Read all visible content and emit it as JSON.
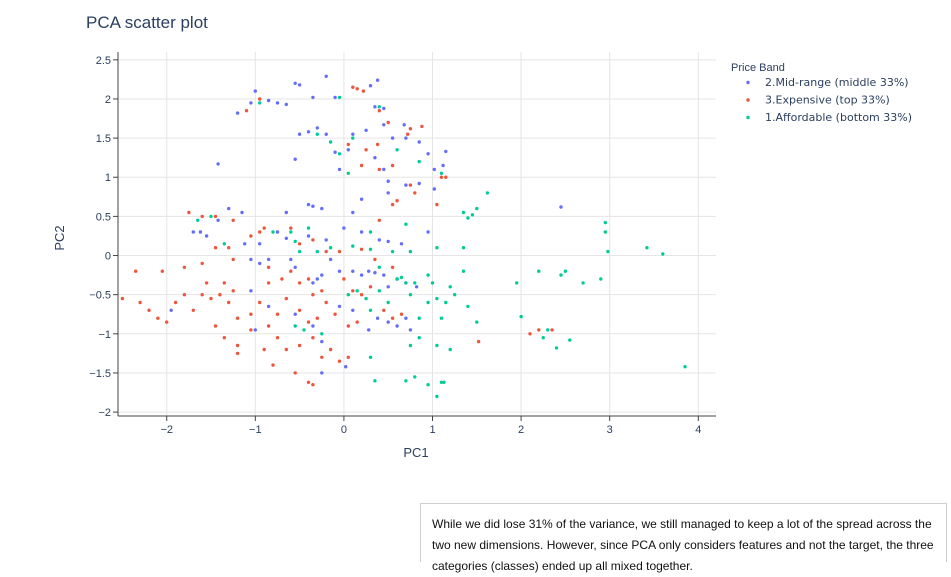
{
  "chart_data": {
    "type": "scatter",
    "title": "PCA scatter plot",
    "xlabel": "PC1",
    "ylabel": "PC2",
    "xlim": [
      -2.55,
      4.2
    ],
    "ylim": [
      -2.05,
      2.6
    ],
    "xticks": [
      -2,
      -1,
      0,
      1,
      2,
      3,
      4
    ],
    "yticks": [
      -2,
      -1.5,
      -1,
      -0.5,
      0,
      0.5,
      1,
      1.5,
      2,
      2.5
    ],
    "xtick_labels": [
      "−2",
      "−1",
      "0",
      "1",
      "2",
      "3",
      "4"
    ],
    "ytick_labels": [
      "−2",
      "−1.5",
      "−1",
      "−0.5",
      "0",
      "0.5",
      "1",
      "1.5",
      "2",
      "2.5"
    ],
    "grid": true,
    "legend_position": "top-right",
    "legend_title": "Price Band",
    "series": [
      {
        "name": "2.Mid-range (middle 33%)",
        "color": "#636efa",
        "points": [
          [
            -0.55,
            2.2
          ],
          [
            -0.5,
            2.18
          ],
          [
            -0.2,
            2.29
          ],
          [
            0.3,
            2.17
          ],
          [
            0.38,
            2.24
          ],
          [
            -0.75,
            1.95
          ],
          [
            -1,
            2.1
          ],
          [
            -0.1,
            2.02
          ],
          [
            -0.35,
            2.02
          ],
          [
            0.35,
            1.9
          ],
          [
            0.45,
            1.88
          ],
          [
            -0.65,
            1.93
          ],
          [
            -1.05,
            1.95
          ],
          [
            -0.85,
            1.98
          ],
          [
            -1.2,
            1.82
          ],
          [
            -0.5,
            1.55
          ],
          [
            -0.4,
            1.58
          ],
          [
            -0.3,
            1.63
          ],
          [
            -0.2,
            1.55
          ],
          [
            0.1,
            1.55
          ],
          [
            0.25,
            1.6
          ],
          [
            0.45,
            1.67
          ],
          [
            0.55,
            1.5
          ],
          [
            0.68,
            1.67
          ],
          [
            0.7,
            1.5
          ],
          [
            0.85,
            1.45
          ],
          [
            0.95,
            1.3
          ],
          [
            1.02,
            1.1
          ],
          [
            1.12,
            1.15
          ],
          [
            1.15,
            1.33
          ],
          [
            -1.42,
            1.17
          ],
          [
            -0.55,
            1.23
          ],
          [
            -0.1,
            1.32
          ],
          [
            0.05,
            1.35
          ],
          [
            -0.05,
            1.1
          ],
          [
            0.35,
            1.25
          ],
          [
            0.45,
            1.1
          ],
          [
            0.5,
            0.95
          ],
          [
            0.7,
            0.9
          ],
          [
            0.85,
            0.92
          ],
          [
            1.02,
            0.85
          ],
          [
            0.2,
            0.72
          ],
          [
            0.5,
            0.8
          ],
          [
            0.1,
            0.55
          ],
          [
            -0.35,
            0.63
          ],
          [
            -0.4,
            0.65
          ],
          [
            -0.25,
            0.6
          ],
          [
            -1.62,
            0.3
          ],
          [
            -1.7,
            0.3
          ],
          [
            -1.55,
            0.25
          ],
          [
            -1.42,
            0.45
          ],
          [
            -1.3,
            0.6
          ],
          [
            -1.15,
            0.55
          ],
          [
            -1.12,
            0.15
          ],
          [
            -0.65,
            0.55
          ],
          [
            -0.75,
            0.3
          ],
          [
            -0.95,
            0.15
          ],
          [
            -0.65,
            0.22
          ],
          [
            -0.4,
            0.25
          ],
          [
            -0.2,
            0.2
          ],
          [
            0,
            0.35
          ],
          [
            0.2,
            0.3
          ],
          [
            0.4,
            0.2
          ],
          [
            0.5,
            0.18
          ],
          [
            0.65,
            0.15
          ],
          [
            0.95,
            0.3
          ],
          [
            -1.05,
            -0.05
          ],
          [
            -0.95,
            -0.1
          ],
          [
            -0.85,
            -0.05
          ],
          [
            -0.6,
            -0.05
          ],
          [
            -0.55,
            -0.15
          ],
          [
            -0.35,
            -0.35
          ],
          [
            -0.3,
            -0.3
          ],
          [
            -0.25,
            -0.25
          ],
          [
            -0.15,
            -0.05
          ],
          [
            -0.05,
            -0.2
          ],
          [
            0.1,
            -0.2
          ],
          [
            0.2,
            -0.25
          ],
          [
            0.28,
            -0.2
          ],
          [
            0.35,
            -0.22
          ],
          [
            0.45,
            -0.25
          ],
          [
            0.5,
            -0.4
          ],
          [
            0.6,
            -0.3
          ],
          [
            0.7,
            -0.35
          ],
          [
            0.82,
            -0.4
          ],
          [
            -1.05,
            -0.45
          ],
          [
            -1,
            -0.95
          ],
          [
            -0.85,
            -0.65
          ],
          [
            -0.55,
            -0.75
          ],
          [
            -0.35,
            -0.9
          ],
          [
            -0.25,
            -1.1
          ],
          [
            -0.05,
            -0.65
          ],
          [
            0.1,
            -0.7
          ],
          [
            0.28,
            -0.95
          ],
          [
            0.38,
            -0.8
          ],
          [
            0.5,
            -0.85
          ],
          [
            0.6,
            -0.9
          ],
          [
            0.7,
            -0.8
          ],
          [
            0.75,
            -0.95
          ],
          [
            0.02,
            -1.42
          ],
          [
            -0.25,
            -1.5
          ],
          [
            -1.95,
            -0.7
          ],
          [
            2.45,
            0.62
          ]
        ]
      },
      {
        "name": "3.Expensive (top 33%)",
        "color": "#ef553b",
        "points": [
          [
            0.1,
            2.15
          ],
          [
            0.15,
            2.13
          ],
          [
            0.22,
            2.1
          ],
          [
            -0.95,
            2
          ],
          [
            -1.1,
            1.85
          ],
          [
            0.4,
            1.85
          ],
          [
            0.5,
            1.7
          ],
          [
            0.75,
            1.62
          ],
          [
            0.72,
            1.55
          ],
          [
            0.88,
            1.65
          ],
          [
            0.05,
            1.42
          ],
          [
            0.25,
            1.35
          ],
          [
            0.38,
            1.42
          ],
          [
            0.2,
            1.15
          ],
          [
            0.4,
            1.1
          ],
          [
            0.55,
            1.15
          ],
          [
            0.6,
            0.7
          ],
          [
            0.75,
            0.9
          ],
          [
            0.8,
            0.8
          ],
          [
            1.1,
            1
          ],
          [
            1.15,
            1
          ],
          [
            1.05,
            0.65
          ],
          [
            0.55,
            0.65
          ],
          [
            0.4,
            0.45
          ],
          [
            -1.75,
            0.55
          ],
          [
            -1.6,
            0.5
          ],
          [
            -1.45,
            0.5
          ],
          [
            -1.25,
            0.45
          ],
          [
            -1.45,
            0.1
          ],
          [
            -1.3,
            0.1
          ],
          [
            -1.25,
            -0.05
          ],
          [
            -1.05,
            0.25
          ],
          [
            -0.95,
            0.3
          ],
          [
            -0.9,
            0.35
          ],
          [
            -0.6,
            0.35
          ],
          [
            -0.5,
            0.15
          ],
          [
            -0.35,
            0.2
          ],
          [
            -0.2,
            0.05
          ],
          [
            -0.05,
            0.05
          ],
          [
            0.2,
            0.08
          ],
          [
            0.35,
            -0.05
          ],
          [
            0.55,
            -0.15
          ],
          [
            -2.35,
            -0.2
          ],
          [
            -2.05,
            -0.2
          ],
          [
            -1.8,
            -0.15
          ],
          [
            -1.6,
            -0.1
          ],
          [
            -1.55,
            -0.35
          ],
          [
            -1.35,
            -0.35
          ],
          [
            -1.25,
            -0.45
          ],
          [
            -0.85,
            -0.15
          ],
          [
            -0.85,
            -0.35
          ],
          [
            -0.7,
            -0.3
          ],
          [
            -0.6,
            -0.2
          ],
          [
            -0.5,
            -0.35
          ],
          [
            -0.4,
            -0.3
          ],
          [
            -0.35,
            -0.5
          ],
          [
            -0.25,
            -0.45
          ],
          [
            0,
            -0.3
          ],
          [
            0.1,
            -0.45
          ],
          [
            0.2,
            -0.5
          ],
          [
            0.3,
            -0.4
          ],
          [
            -2.3,
            -0.6
          ],
          [
            -2.2,
            -0.7
          ],
          [
            -2.1,
            -0.8
          ],
          [
            -2,
            -0.85
          ],
          [
            -1.9,
            -0.6
          ],
          [
            -1.8,
            -0.5
          ],
          [
            -1.7,
            -0.7
          ],
          [
            -1.6,
            -0.5
          ],
          [
            -1.5,
            -0.55
          ],
          [
            -1.45,
            -0.9
          ],
          [
            -1.4,
            -0.5
          ],
          [
            -1.3,
            -0.6
          ],
          [
            -1.2,
            -0.8
          ],
          [
            -1.05,
            -0.75
          ],
          [
            -0.95,
            -0.6
          ],
          [
            -0.85,
            -0.9
          ],
          [
            -0.75,
            -0.75
          ],
          [
            -0.65,
            -0.55
          ],
          [
            -0.5,
            -0.7
          ],
          [
            -0.4,
            -0.85
          ],
          [
            -0.3,
            -0.8
          ],
          [
            -0.2,
            -0.6
          ],
          [
            -0.1,
            -0.75
          ],
          [
            0.05,
            -0.9
          ],
          [
            0.15,
            -0.85
          ],
          [
            0.45,
            -0.7
          ],
          [
            0.55,
            -0.8
          ],
          [
            0.65,
            -0.75
          ],
          [
            -2.5,
            -0.55
          ],
          [
            -1.35,
            -1.05
          ],
          [
            -1.2,
            -1.15
          ],
          [
            -1.05,
            -0.95
          ],
          [
            -0.9,
            -1.2
          ],
          [
            -0.75,
            -1.05
          ],
          [
            -0.65,
            -1.2
          ],
          [
            -0.5,
            -1.15
          ],
          [
            -0.35,
            -1.05
          ],
          [
            -0.25,
            -1.3
          ],
          [
            -0.15,
            -1.2
          ],
          [
            -0.05,
            -1.35
          ],
          [
            0.05,
            -1.3
          ],
          [
            -0.4,
            -1.62
          ],
          [
            -0.35,
            -1.65
          ],
          [
            -0.55,
            -1.5
          ],
          [
            -0.8,
            -1.4
          ],
          [
            -1.2,
            -1.25
          ],
          [
            2.2,
            -0.95
          ],
          [
            2.35,
            -0.95
          ],
          [
            2.1,
            -1
          ],
          [
            1.52,
            -1.1
          ]
        ]
      },
      {
        "name": "1.Affordable (bottom 33%)",
        "color": "#00cc96",
        "points": [
          [
            -0.05,
            2.02
          ],
          [
            -0.95,
            1.95
          ],
          [
            0.4,
            1.9
          ],
          [
            -0.3,
            1.55
          ],
          [
            -0.15,
            1.45
          ],
          [
            0.1,
            1.5
          ],
          [
            -0.05,
            1.3
          ],
          [
            0.05,
            1.05
          ],
          [
            0.6,
            1.35
          ],
          [
            0.85,
            1.2
          ],
          [
            1.1,
            1.05
          ],
          [
            1.35,
            0.55
          ],
          [
            1.4,
            0.48
          ],
          [
            1.45,
            0.52
          ],
          [
            1.5,
            0.6
          ],
          [
            1.62,
            0.8
          ],
          [
            0.7,
            0.4
          ],
          [
            0.3,
            0.3
          ],
          [
            -0.4,
            0.35
          ],
          [
            -0.6,
            0.3
          ],
          [
            -1.65,
            0.45
          ],
          [
            -1.5,
            0.5
          ],
          [
            -1.35,
            0.15
          ],
          [
            -0.8,
            0.3
          ],
          [
            -0.55,
            0.18
          ],
          [
            -0.5,
            0.05
          ],
          [
            -0.3,
            0.05
          ],
          [
            -0.15,
            0.1
          ],
          [
            0.1,
            0.12
          ],
          [
            0.3,
            0.08
          ],
          [
            0.55,
            0.05
          ],
          [
            0.75,
            0.05
          ],
          [
            1.05,
            0.1
          ],
          [
            1.35,
            0.1
          ],
          [
            0.4,
            -0.15
          ],
          [
            0.6,
            -0.3
          ],
          [
            0.65,
            -0.28
          ],
          [
            0.7,
            -0.35
          ],
          [
            0.8,
            -0.35
          ],
          [
            0.95,
            -0.25
          ],
          [
            1.0,
            -0.35
          ],
          [
            1.05,
            -0.55
          ],
          [
            1.2,
            -0.4
          ],
          [
            1.35,
            -0.2
          ],
          [
            0.05,
            -0.5
          ],
          [
            0.15,
            -0.45
          ],
          [
            0.25,
            -0.55
          ],
          [
            0.3,
            -0.7
          ],
          [
            0.4,
            -0.45
          ],
          [
            0.5,
            -0.6
          ],
          [
            0.75,
            -0.5
          ],
          [
            0.85,
            -0.8
          ],
          [
            0.95,
            -0.6
          ],
          [
            1.1,
            -0.8
          ],
          [
            1.15,
            -0.6
          ],
          [
            1.25,
            -0.5
          ],
          [
            1.4,
            -0.65
          ],
          [
            1.5,
            -0.85
          ],
          [
            1.95,
            -0.35
          ],
          [
            2.2,
            -0.2
          ],
          [
            2.5,
            -0.2
          ],
          [
            2.7,
            -0.35
          ],
          [
            2.9,
            -0.3
          ],
          [
            2.98,
            0.05
          ],
          [
            3.42,
            0.1
          ],
          [
            3.6,
            0.02
          ],
          [
            2.95,
            0.3
          ],
          [
            2.95,
            0.42
          ],
          [
            2.45,
            -0.25
          ],
          [
            2,
            -0.78
          ],
          [
            2.3,
            -0.95
          ],
          [
            2.25,
            -1.05
          ],
          [
            2.55,
            -1.08
          ],
          [
            2.4,
            -1.18
          ],
          [
            3.85,
            -1.42
          ],
          [
            -0.55,
            -0.9
          ],
          [
            -0.45,
            -0.95
          ],
          [
            -0.25,
            -1.0
          ],
          [
            0.3,
            -1.3
          ],
          [
            0.75,
            -1.15
          ],
          [
            0.85,
            -1.05
          ],
          [
            1.05,
            -1.15
          ],
          [
            1.2,
            -1.2
          ],
          [
            0.35,
            -1.6
          ],
          [
            0.7,
            -1.6
          ],
          [
            0.8,
            -1.55
          ],
          [
            0.95,
            -1.65
          ],
          [
            1.1,
            -1.62
          ],
          [
            1.05,
            -1.8
          ],
          [
            1.13,
            -1.62
          ]
        ]
      }
    ]
  },
  "note": {
    "text": "While we did lose 31% of the variance, we still managed to keep a lot of the spread across the two new dimensions. However, since PCA only considers features and not the target, the three categories (classes) ended up all mixed together."
  }
}
